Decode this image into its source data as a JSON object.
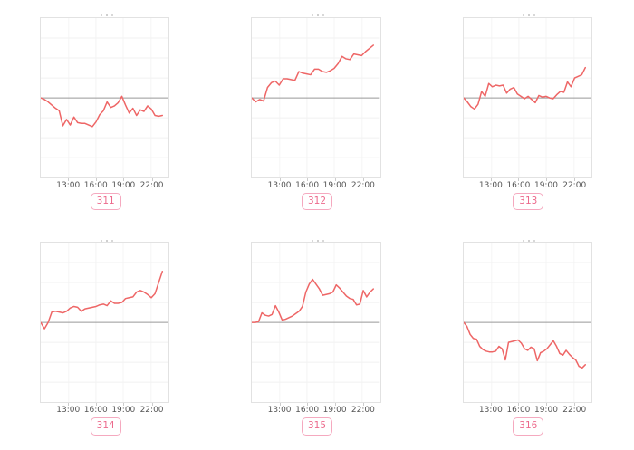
{
  "page": {
    "background": "#ffffff"
  },
  "chart_config": {
    "x_tick_labels": [
      "13:00",
      "16:00",
      "19:00",
      "22:00"
    ],
    "x_tick_positions_pct": [
      21.8,
      43.1,
      64.4,
      86.2
    ],
    "baseline_pct": 50,
    "h_gridline_pcts": [
      12.5,
      25,
      37.5,
      62.5,
      75,
      87.5
    ],
    "line_start_pct": 0,
    "line_end_pct": 95,
    "colors": {
      "line": "#ee6666",
      "baseline": "#999999",
      "h_grid": "#f0f0f0",
      "v_grid": "#f4f4f4",
      "plot_border": "#e2e2e2",
      "tick": "#cccccc",
      "axis_label": "#555555",
      "badge_text": "#ec6a8c",
      "badge_border": "#f5a9bf"
    }
  },
  "chart_data": {
    "type": "line",
    "units": "percent of plot half-height relative to gray baseline (no y-axis labels visible)",
    "x_axis": {
      "tick_labels": [
        "13:00",
        "16:00",
        "19:00",
        "22:00"
      ]
    },
    "charts": [
      {
        "id": "311",
        "values": [
          0,
          -2,
          -5,
          -9,
          -13,
          -16,
          -35,
          -27,
          -34,
          -24,
          -31,
          -32,
          -32,
          -34,
          -36,
          -30,
          -21,
          -16,
          -5,
          -12,
          -10,
          -6,
          2,
          -9,
          -19,
          -13,
          -22,
          -15,
          -17,
          -10,
          -14,
          -22,
          -23,
          -22
        ]
      },
      {
        "id": "312",
        "values": [
          0,
          -5,
          -2,
          -4,
          13,
          19,
          21,
          16,
          24,
          24,
          23,
          22,
          33,
          31,
          30,
          29,
          36,
          36,
          33,
          32,
          34,
          37,
          43,
          52,
          49,
          48,
          55,
          54,
          53,
          58,
          62,
          66
        ]
      },
      {
        "id": "313",
        "values": [
          0,
          -5,
          -11,
          -14,
          -8,
          8,
          2,
          18,
          14,
          16,
          15,
          16,
          6,
          11,
          13,
          5,
          2,
          -1,
          2,
          -2,
          -6,
          3,
          1,
          2,
          0,
          -1,
          4,
          8,
          7,
          20,
          14,
          25,
          27,
          29,
          38
        ]
      },
      {
        "id": "314",
        "values": [
          0,
          -8,
          0,
          13,
          14,
          13,
          12,
          14,
          18,
          20,
          19,
          14,
          17,
          18,
          19,
          20,
          22,
          23,
          21,
          27,
          24,
          24,
          25,
          30,
          31,
          32,
          38,
          40,
          38,
          35,
          31,
          36,
          50,
          64
        ]
      },
      {
        "id": "315",
        "values": [
          0,
          0,
          1,
          12,
          9,
          8,
          10,
          21,
          13,
          3,
          4,
          6,
          8,
          11,
          14,
          20,
          38,
          48,
          54,
          48,
          42,
          34,
          35,
          36,
          38,
          47,
          43,
          38,
          33,
          30,
          29,
          22,
          23,
          40,
          32,
          38,
          42
        ]
      },
      {
        "id": "316",
        "values": [
          0,
          -5,
          -15,
          -20,
          -21,
          -30,
          -34,
          -36,
          -37,
          -37,
          -36,
          -30,
          -33,
          -47,
          -25,
          -24,
          -23,
          -22,
          -26,
          -33,
          -35,
          -31,
          -33,
          -48,
          -38,
          -36,
          -33,
          -28,
          -23,
          -30,
          -39,
          -41,
          -35,
          -40,
          -44,
          -47,
          -55,
          -57,
          -53
        ]
      }
    ]
  }
}
